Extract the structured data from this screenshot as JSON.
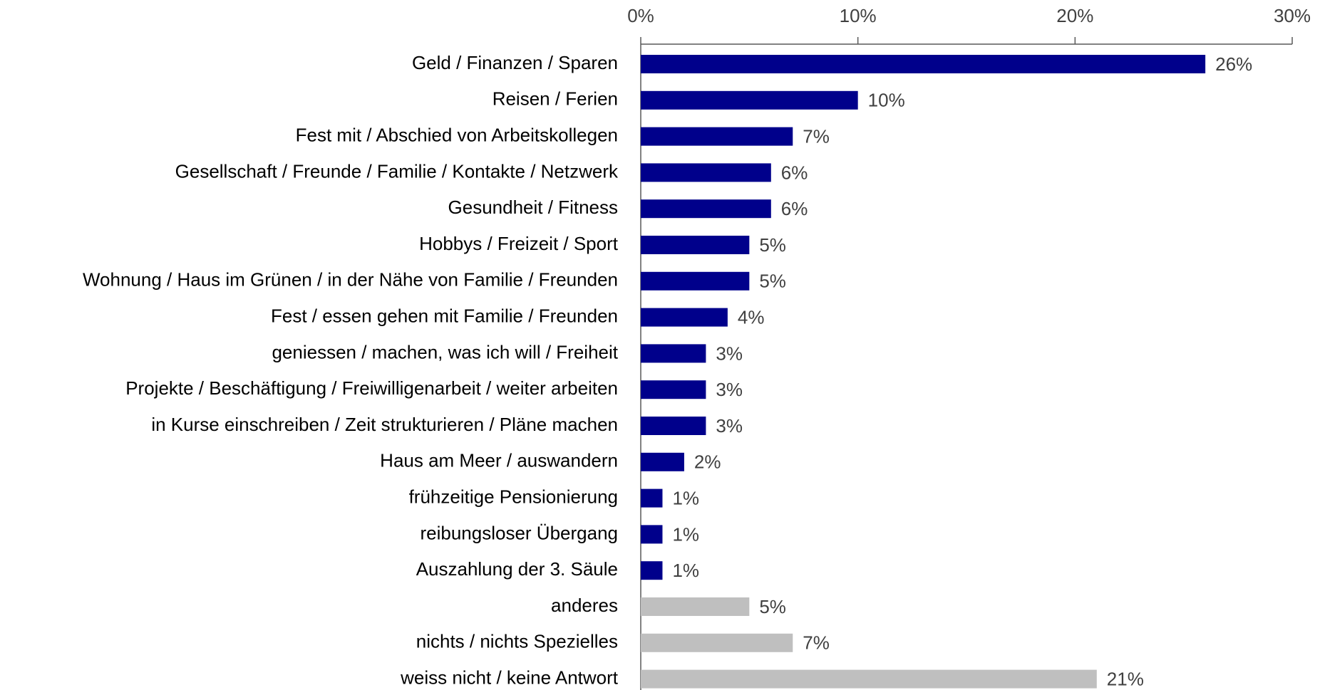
{
  "chart_data": {
    "type": "bar",
    "orientation": "horizontal",
    "categories": [
      "Geld / Finanzen / Sparen",
      "Reisen / Ferien",
      "Fest mit / Abschied von Arbeitskollegen",
      "Gesellschaft / Freunde / Familie / Kontakte / Netzwerk",
      "Gesundheit / Fitness",
      "Hobbys / Freizeit / Sport",
      "Wohnung / Haus im Grünen / in der Nähe von Familie / Freunden",
      "Fest / essen gehen mit Familie / Freunden",
      "geniessen / machen, was ich will / Freiheit",
      "Projekte / Beschäftigung / Freiwilligenarbeit / weiter arbeiten",
      "in Kurse einschreiben / Zeit strukturieren / Pläne machen",
      "Haus am Meer / auswandern",
      "frühzeitige Pensionierung",
      "reibungsloser Übergang",
      "Auszahlung der 3. Säule",
      "anderes",
      "nichts / nichts Spezielles",
      "weiss nicht / keine Antwort"
    ],
    "values": [
      26,
      10,
      7,
      6,
      6,
      5,
      5,
      4,
      3,
      3,
      3,
      2,
      1,
      1,
      1,
      5,
      7,
      21
    ],
    "value_labels": [
      "26%",
      "10%",
      "7%",
      "6%",
      "6%",
      "5%",
      "5%",
      "4%",
      "3%",
      "3%",
      "3%",
      "2%",
      "1%",
      "1%",
      "1%",
      "5%",
      "7%",
      "21%"
    ],
    "colors": [
      "#00008b",
      "#00008b",
      "#00008b",
      "#00008b",
      "#00008b",
      "#00008b",
      "#00008b",
      "#00008b",
      "#00008b",
      "#00008b",
      "#00008b",
      "#00008b",
      "#00008b",
      "#00008b",
      "#00008b",
      "#bfbfbf",
      "#bfbfbf",
      "#bfbfbf"
    ],
    "xlim": [
      0,
      30
    ],
    "xticks": [
      {
        "value": 0,
        "label": "0%"
      },
      {
        "value": 10,
        "label": "10%"
      },
      {
        "value": 20,
        "label": "20%"
      },
      {
        "value": 30,
        "label": "30%"
      }
    ],
    "grid": false
  }
}
